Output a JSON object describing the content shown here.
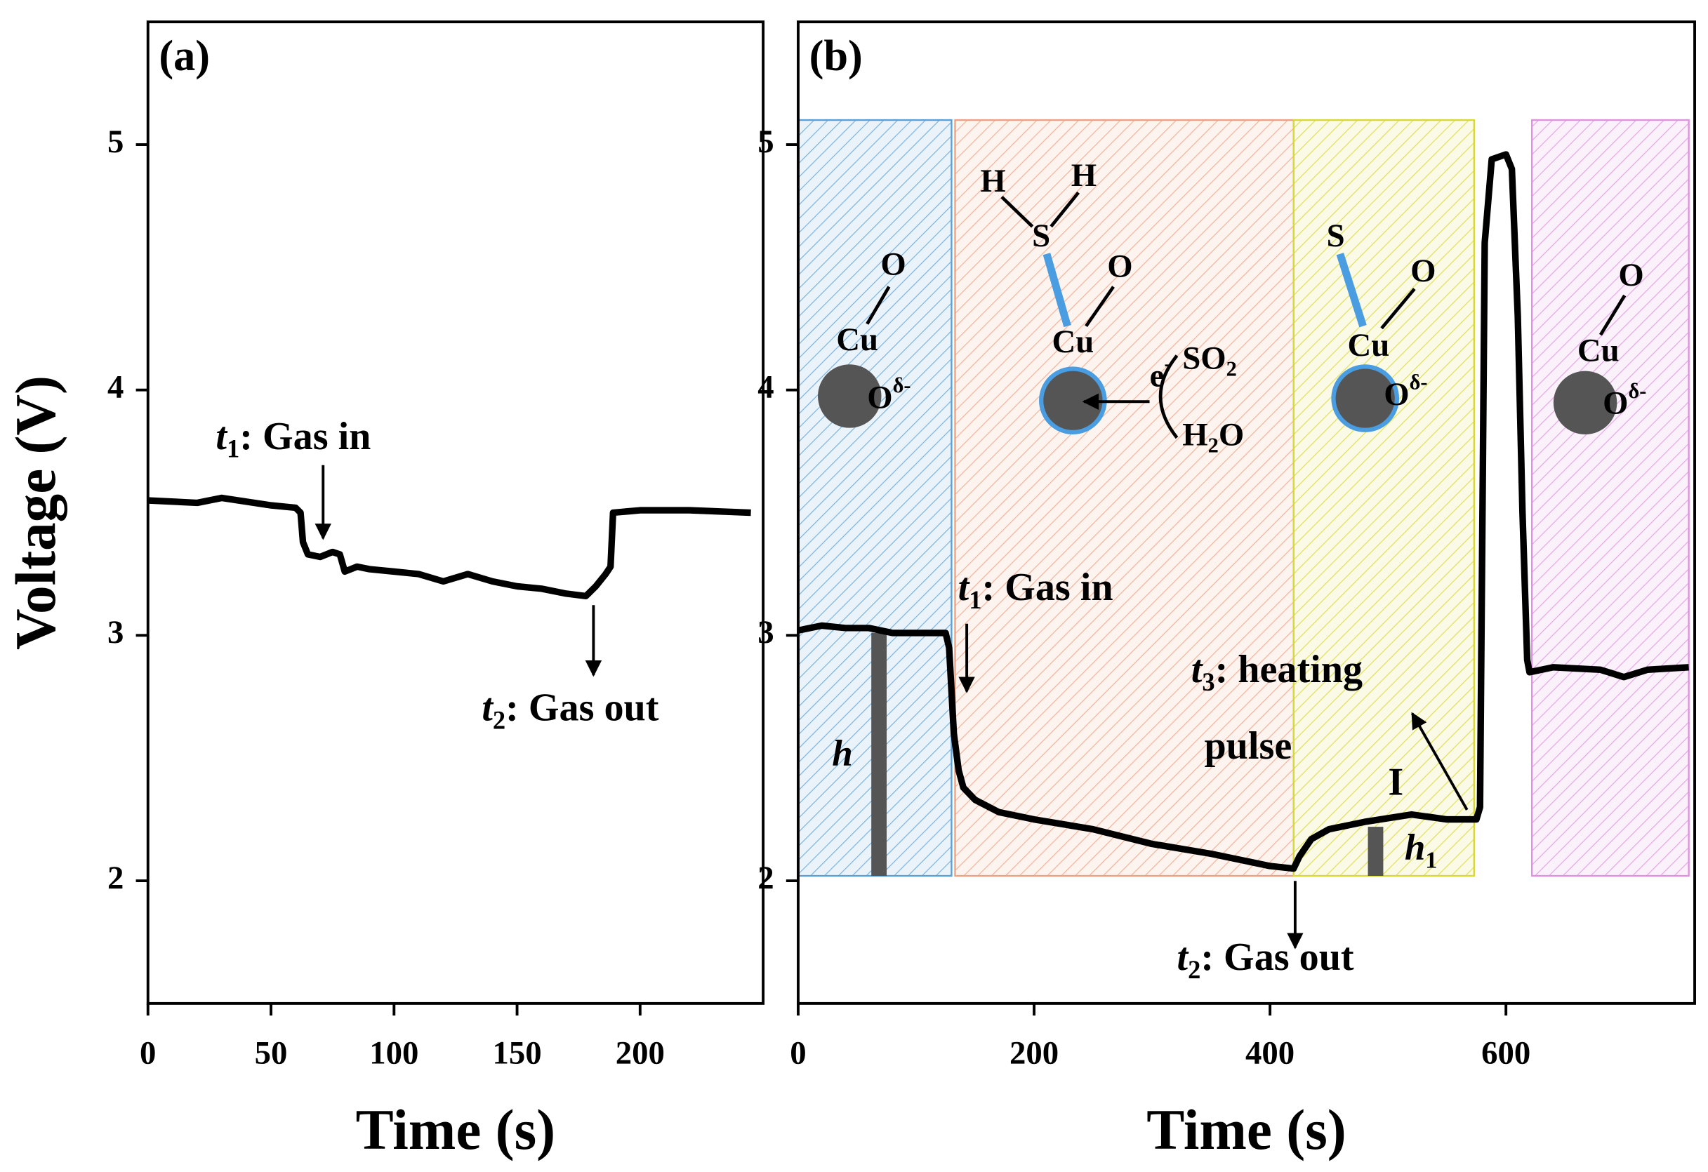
{
  "chart_data": [
    {
      "type": "line",
      "panel_label": "(a)",
      "xlabel": "Time (s)",
      "ylabel": "Voltage (V)",
      "xlim": [
        0,
        250
      ],
      "ylim": [
        1.5,
        5.5
      ],
      "xticks": [
        0,
        50,
        100,
        150,
        200
      ],
      "yticks": [
        2,
        3,
        4,
        5
      ],
      "series": [
        {
          "color": "#000000",
          "x": [
            0,
            20,
            30,
            50,
            60,
            62,
            63,
            65,
            70,
            75,
            78,
            80,
            85,
            90,
            100,
            110,
            120,
            130,
            140,
            150,
            160,
            170,
            178,
            182,
            186,
            188,
            189,
            200,
            220,
            245
          ],
          "values": [
            3.55,
            3.54,
            3.56,
            3.53,
            3.52,
            3.5,
            3.38,
            3.33,
            3.32,
            3.34,
            3.33,
            3.26,
            3.28,
            3.27,
            3.26,
            3.25,
            3.22,
            3.25,
            3.22,
            3.2,
            3.19,
            3.17,
            3.16,
            3.2,
            3.25,
            3.28,
            3.5,
            3.51,
            3.51,
            3.5
          ]
        }
      ],
      "annotations": [
        {
          "var": "t",
          "sub": "1",
          "text": ": Gas in"
        },
        {
          "var": "t",
          "sub": "2",
          "text": ": Gas out"
        }
      ]
    },
    {
      "type": "line",
      "panel_label": "(b)",
      "xlabel": "Time (s)",
      "xlim": [
        0,
        760
      ],
      "ylim": [
        1.5,
        5.5
      ],
      "xticks": [
        0,
        200,
        400,
        600
      ],
      "yticks": [
        2,
        3,
        4,
        5
      ],
      "series": [
        {
          "color": "#000000",
          "x": [
            0,
            20,
            40,
            60,
            80,
            100,
            125,
            128,
            132,
            136,
            140,
            150,
            170,
            200,
            250,
            300,
            350,
            400,
            420,
            425,
            435,
            450,
            480,
            520,
            550,
            575,
            578,
            582,
            588,
            600,
            605,
            610,
            614,
            618,
            620,
            640,
            680,
            700,
            720,
            755
          ],
          "values": [
            3.02,
            3.04,
            3.03,
            3.03,
            3.01,
            3.01,
            3.01,
            2.95,
            2.6,
            2.45,
            2.38,
            2.33,
            2.28,
            2.25,
            2.21,
            2.15,
            2.11,
            2.06,
            2.05,
            2.1,
            2.17,
            2.21,
            2.24,
            2.27,
            2.25,
            2.25,
            2.3,
            4.6,
            4.94,
            4.96,
            4.9,
            4.3,
            3.5,
            2.9,
            2.85,
            2.87,
            2.86,
            2.83,
            2.86,
            2.87
          ]
        }
      ],
      "regions": [
        {
          "color": "#5aa0d8",
          "x": [
            0,
            130
          ],
          "y": [
            2.02,
            5.1
          ]
        },
        {
          "color": "#f0a080",
          "x": [
            133,
            420
          ],
          "y": [
            2.02,
            5.1
          ]
        },
        {
          "color": "#d8d830",
          "x": [
            420,
            573
          ],
          "y": [
            2.02,
            5.1
          ]
        },
        {
          "color": "#e090e0",
          "x": [
            622,
            755
          ],
          "y": [
            2.02,
            5.1
          ]
        }
      ],
      "markers": [
        {
          "label": "h",
          "x": [
            62,
            75
          ],
          "y": [
            2.02,
            3.01
          ]
        },
        {
          "label": "h",
          "sub": "1",
          "x": [
            483,
            496
          ],
          "y": [
            2.02,
            2.22
          ]
        }
      ],
      "annotations": [
        {
          "var": "t",
          "sub": "1",
          "text": ": Gas in"
        },
        {
          "var": "t",
          "sub": "2",
          "text": ": Gas out"
        },
        {
          "var": "t",
          "sub": "3",
          "text": ": heating"
        },
        {
          "text": "pulse"
        },
        {
          "text": "I"
        }
      ],
      "diagram_labels": [
        {
          "text": "O"
        },
        {
          "text": "Cu"
        },
        {
          "text": "O",
          "sup": "δ-"
        },
        {
          "text": "H"
        },
        {
          "text": "H"
        },
        {
          "text": "S"
        },
        {
          "text": "O"
        },
        {
          "text": "Cu"
        },
        {
          "text": "e",
          "sup": "-"
        },
        {
          "text": "SO",
          "sub": "2"
        },
        {
          "text": "H",
          "sub": "2",
          "after": "O"
        },
        {
          "text": "S"
        },
        {
          "text": "O"
        },
        {
          "text": "Cu"
        },
        {
          "text": "O",
          "sup": "δ-"
        },
        {
          "text": "O"
        },
        {
          "text": "Cu"
        },
        {
          "text": "O",
          "sup": "δ-"
        }
      ]
    }
  ]
}
